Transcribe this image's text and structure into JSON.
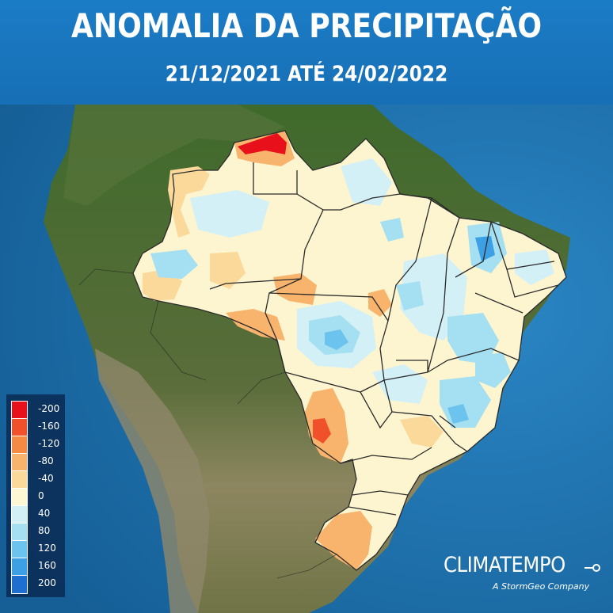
{
  "header": {
    "title": "ANOMALIA DA PRECIPITAÇÃO",
    "subtitle": "21/12/2021 ATÉ 24/02/2022"
  },
  "legend": {
    "items": [
      {
        "label": "-200",
        "color": "#e8101a"
      },
      {
        "label": "-160",
        "color": "#f0512a"
      },
      {
        "label": "-120",
        "color": "#f58a45"
      },
      {
        "label": "-80",
        "color": "#f8b46c"
      },
      {
        "label": "-40",
        "color": "#fbd99b"
      },
      {
        "label": "0",
        "color": "#fdf7d4"
      },
      {
        "label": "40",
        "color": "#d3f0f7"
      },
      {
        "label": "80",
        "color": "#a5dff2"
      },
      {
        "label": "120",
        "color": "#6cc4ee"
      },
      {
        "label": "160",
        "color": "#3da0e4"
      },
      {
        "label": "200",
        "color": "#1f6fd0"
      }
    ]
  },
  "brand": {
    "name": "CLIMATEMPO",
    "tagline": "A StormGeo Company"
  },
  "colors": {
    "header_bg": "#1b7cc6",
    "ocean": "#1a6fa8",
    "land_forest": "#3d6b2a",
    "land_dry": "#9a8f6c"
  }
}
